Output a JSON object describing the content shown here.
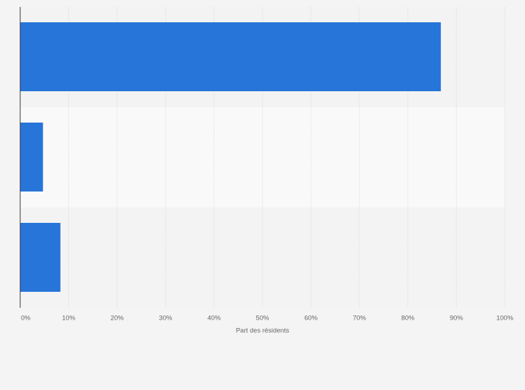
{
  "chart_data": {
    "type": "hbar",
    "categories": [
      null,
      null,
      null
    ],
    "values": [
      86.8,
      4.7,
      8.3
    ],
    "color": "#2775d9",
    "x_label": "Part des résidents",
    "xlim": [
      0,
      100
    ],
    "xticks": [
      {
        "value": 0,
        "label": "0%"
      },
      {
        "value": 10,
        "label": "10%"
      },
      {
        "value": 20,
        "label": "20%"
      },
      {
        "value": 30,
        "label": "30%"
      },
      {
        "value": 40,
        "label": "40%"
      },
      {
        "value": 50,
        "label": "50%"
      },
      {
        "value": 60,
        "label": "60%"
      },
      {
        "value": 70,
        "label": "70%"
      },
      {
        "value": 80,
        "label": "80%"
      },
      {
        "value": 90,
        "label": "90%"
      },
      {
        "value": 100,
        "label": "100%"
      }
    ],
    "grid": true
  }
}
